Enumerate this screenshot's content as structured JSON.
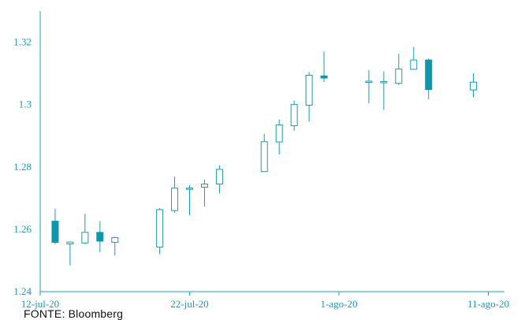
{
  "source_note": "FONTE: Bloomberg",
  "colors": {
    "axis": "#1aa3b8",
    "text": "#1a9bb0",
    "down_fill": "#0e97ab",
    "up_fill": "#ffffff"
  },
  "chart_data": {
    "type": "candlestick",
    "title": "",
    "xlabel": "",
    "ylabel": "",
    "ylim": [
      1.24,
      1.33
    ],
    "yticks": [
      1.24,
      1.26,
      1.28,
      1.3,
      1.32
    ],
    "ytick_labels": [
      "1.24",
      "1.26",
      "1.28",
      "1.3",
      "1.32"
    ],
    "x_range": [
      "2020-07-12",
      "2020-08-11"
    ],
    "xticks": [
      "2020-07-12",
      "2020-07-22",
      "2020-08-01",
      "2020-08-11"
    ],
    "xtick_labels": [
      "12-jul-20",
      "22-jul-20",
      "1-ago-20",
      "11-ago-20"
    ],
    "grid": false,
    "candles": [
      {
        "date": "2020-07-13",
        "open": 1.2626,
        "high": 1.2666,
        "low": 1.2552,
        "close": 1.2558
      },
      {
        "date": "2020-07-14",
        "open": 1.2553,
        "high": 1.256,
        "low": 1.2484,
        "close": 1.2559
      },
      {
        "date": "2020-07-15",
        "open": 1.2556,
        "high": 1.265,
        "low": 1.2553,
        "close": 1.259
      },
      {
        "date": "2020-07-16",
        "open": 1.259,
        "high": 1.2626,
        "low": 1.2526,
        "close": 1.2562
      },
      {
        "date": "2020-07-17",
        "open": 1.2558,
        "high": 1.2576,
        "low": 1.2516,
        "close": 1.2573
      },
      {
        "date": "2020-07-20",
        "open": 1.2543,
        "high": 1.2668,
        "low": 1.252,
        "close": 1.2663
      },
      {
        "date": "2020-07-21",
        "open": 1.266,
        "high": 1.2769,
        "low": 1.2653,
        "close": 1.2732
      },
      {
        "date": "2020-07-22",
        "open": 1.2731,
        "high": 1.2741,
        "low": 1.2645,
        "close": 1.2732
      },
      {
        "date": "2020-07-23",
        "open": 1.2735,
        "high": 1.2759,
        "low": 1.2673,
        "close": 1.2745
      },
      {
        "date": "2020-07-24",
        "open": 1.2745,
        "high": 1.2805,
        "low": 1.2715,
        "close": 1.2792
      },
      {
        "date": "2020-07-27",
        "open": 1.2785,
        "high": 1.2906,
        "low": 1.2785,
        "close": 1.2881
      },
      {
        "date": "2020-07-28",
        "open": 1.288,
        "high": 1.2952,
        "low": 1.284,
        "close": 1.2935
      },
      {
        "date": "2020-07-29",
        "open": 1.2932,
        "high": 1.3013,
        "low": 1.2916,
        "close": 1.3
      },
      {
        "date": "2020-07-30",
        "open": 1.2998,
        "high": 1.3104,
        "low": 1.2945,
        "close": 1.3094
      },
      {
        "date": "2020-07-31",
        "open": 1.3092,
        "high": 1.317,
        "low": 1.3072,
        "close": 1.3085
      },
      {
        "date": "2020-08-03",
        "open": 1.3075,
        "high": 1.311,
        "low": 1.3004,
        "close": 1.3075
      },
      {
        "date": "2020-08-04",
        "open": 1.307,
        "high": 1.3106,
        "low": 1.2983,
        "close": 1.3074
      },
      {
        "date": "2020-08-05",
        "open": 1.3068,
        "high": 1.3163,
        "low": 1.3063,
        "close": 1.3114
      },
      {
        "date": "2020-08-06",
        "open": 1.3113,
        "high": 1.3185,
        "low": 1.3113,
        "close": 1.3143
      },
      {
        "date": "2020-08-07",
        "open": 1.3143,
        "high": 1.3148,
        "low": 1.3017,
        "close": 1.3048
      },
      {
        "date": "2020-08-10",
        "open": 1.3047,
        "high": 1.31,
        "low": 1.3023,
        "close": 1.3072
      }
    ]
  }
}
